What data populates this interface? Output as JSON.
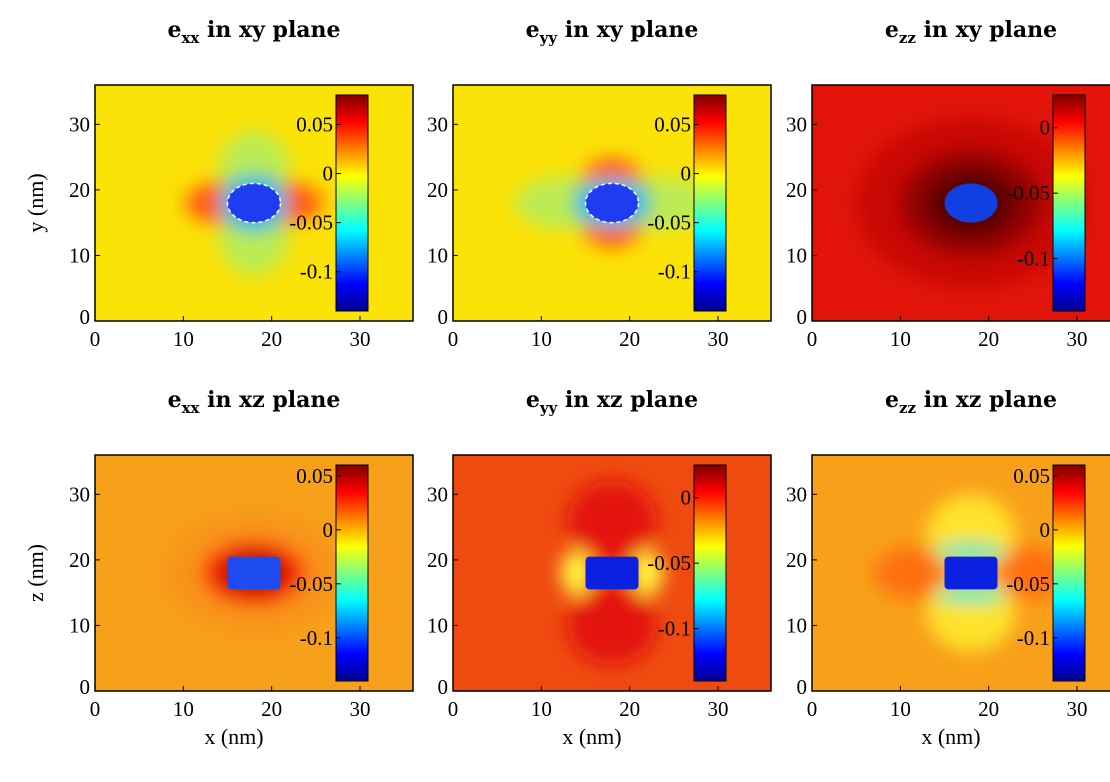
{
  "chart_data": [
    {
      "type": "heatmap",
      "title": {
        "var": "e",
        "sub": "xx",
        "rest": " in xy plane"
      },
      "xlabel": "",
      "ylabel": "y  (nm)",
      "xlim": [
        0,
        36
      ],
      "ylim": [
        0,
        36
      ],
      "x_ticks": [
        "0",
        "10",
        "20",
        "30"
      ],
      "y_ticks": [
        "0",
        "10",
        "20",
        "30"
      ],
      "colorbar": {
        "range": [
          -0.14,
          0.08
        ],
        "ticks": [
          "0.05",
          "0",
          "-0.05",
          "-0.1"
        ],
        "tick_values": [
          0.05,
          0,
          -0.05,
          -0.1
        ]
      },
      "inclusion": {
        "shape": "disk",
        "center": [
          18,
          18
        ],
        "radius": 3
      }
    },
    {
      "type": "heatmap",
      "title": {
        "var": "e",
        "sub": "yy",
        "rest": " in xy plane"
      },
      "xlabel": "",
      "ylabel": "",
      "xlim": [
        0,
        36
      ],
      "ylim": [
        0,
        36
      ],
      "x_ticks": [
        "0",
        "10",
        "20",
        "30"
      ],
      "y_ticks": [
        "0",
        "10",
        "20",
        "30"
      ],
      "colorbar": {
        "range": [
          -0.14,
          0.08
        ],
        "ticks": [
          "0.05",
          "0",
          "-0.05",
          "-0.1"
        ],
        "tick_values": [
          0.05,
          0,
          -0.05,
          -0.1
        ]
      },
      "inclusion": {
        "shape": "disk",
        "center": [
          18,
          18
        ],
        "radius": 3
      }
    },
    {
      "type": "heatmap",
      "title": {
        "var": "e",
        "sub": "zz",
        "rest": " in xy plane"
      },
      "xlabel": "",
      "ylabel": "",
      "xlim": [
        0,
        36
      ],
      "ylim": [
        0,
        36
      ],
      "x_ticks": [
        "0",
        "10",
        "20",
        "30"
      ],
      "y_ticks": [
        "0",
        "10",
        "20",
        "30"
      ],
      "colorbar": {
        "range": [
          -0.14,
          0.025
        ],
        "ticks": [
          "0",
          "-0.05",
          "-0.1"
        ],
        "tick_values": [
          0,
          -0.05,
          -0.1
        ]
      },
      "inclusion": {
        "shape": "disk",
        "center": [
          18,
          18
        ],
        "radius": 3
      }
    },
    {
      "type": "heatmap",
      "title": {
        "var": "e",
        "sub": "xx",
        "rest": " in xz plane"
      },
      "xlabel": "x  (nm)",
      "ylabel": "z  (nm)",
      "xlim": [
        0,
        36
      ],
      "ylim": [
        0,
        36
      ],
      "x_ticks": [
        "0",
        "10",
        "20",
        "30"
      ],
      "y_ticks": [
        "0",
        "10",
        "20",
        "30"
      ],
      "colorbar": {
        "range": [
          -0.14,
          0.06
        ],
        "ticks": [
          "0.05",
          "0",
          "-0.05",
          "-0.1"
        ],
        "tick_values": [
          0.05,
          0,
          -0.05,
          -0.1
        ]
      },
      "inclusion": {
        "shape": "box",
        "center": [
          18,
          18
        ],
        "half_width": 3,
        "half_height": 2.5
      }
    },
    {
      "type": "heatmap",
      "title": {
        "var": "e",
        "sub": "yy",
        "rest": " in xz plane"
      },
      "xlabel": "x  (nm)",
      "ylabel": "",
      "xlim": [
        0,
        36
      ],
      "ylim": [
        0,
        36
      ],
      "x_ticks": [
        "0",
        "10",
        "20",
        "30"
      ],
      "y_ticks": [
        "0",
        "10",
        "20",
        "30"
      ],
      "colorbar": {
        "range": [
          -0.14,
          0.025
        ],
        "ticks": [
          "0",
          "-0.05",
          "-0.1"
        ],
        "tick_values": [
          0,
          -0.05,
          -0.1
        ]
      },
      "inclusion": {
        "shape": "box",
        "center": [
          18,
          18
        ],
        "half_width": 3,
        "half_height": 2.5
      }
    },
    {
      "type": "heatmap",
      "title": {
        "var": "e",
        "sub": "zz",
        "rest": " in xz plane"
      },
      "xlabel": "x  (nm)",
      "ylabel": "",
      "xlim": [
        0,
        36
      ],
      "ylim": [
        0,
        36
      ],
      "x_ticks": [
        "0",
        "10",
        "20",
        "30"
      ],
      "y_ticks": [
        "0",
        "10",
        "20",
        "30"
      ],
      "colorbar": {
        "range": [
          -0.14,
          0.06
        ],
        "ticks": [
          "0.05",
          "0",
          "-0.05",
          "-0.1"
        ],
        "tick_values": [
          0.05,
          0,
          -0.05,
          -0.1
        ]
      },
      "inclusion": {
        "shape": "box",
        "center": [
          18,
          18
        ],
        "half_width": 3,
        "half_height": 2.5
      }
    }
  ]
}
